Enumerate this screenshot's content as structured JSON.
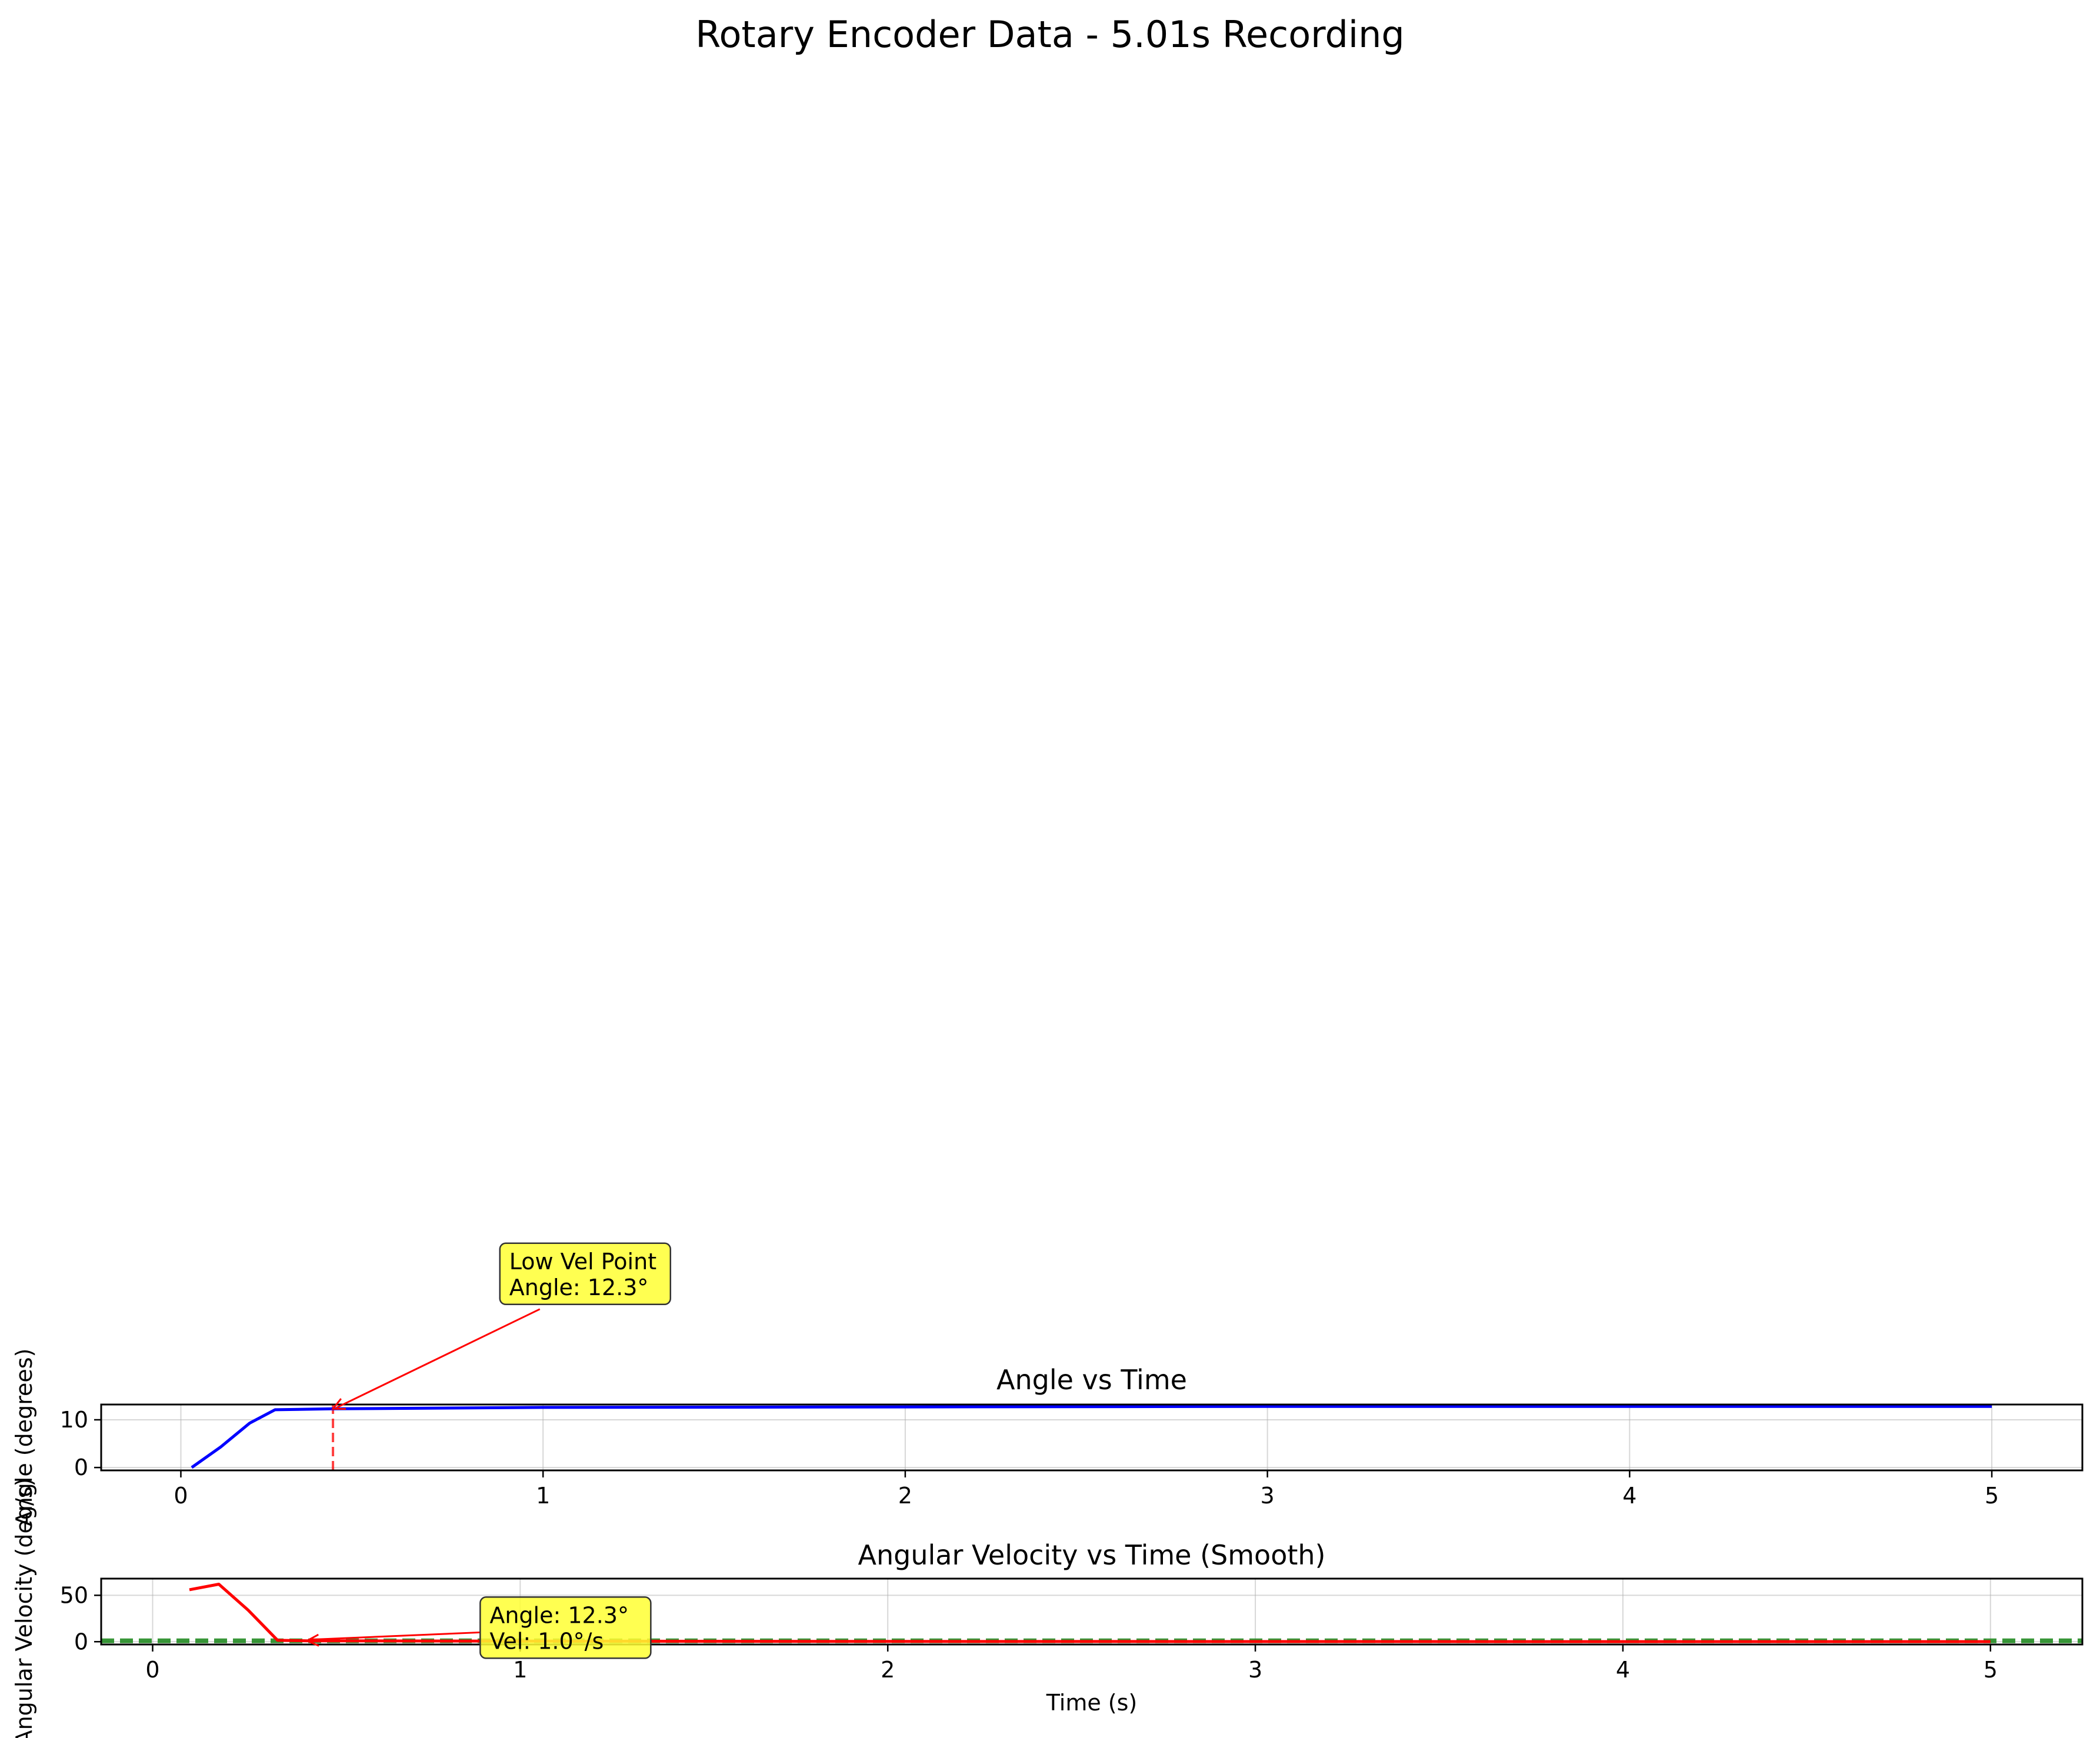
{
  "chart_data": [
    {
      "type": "line",
      "title": "Angle vs Time",
      "xlabel": "",
      "ylabel": "Angle (degrees)",
      "xlim": [
        -0.22,
        5.25
      ],
      "ylim": [
        -0.6,
        13.2
      ],
      "xticks": [
        0,
        1,
        2,
        3,
        4,
        5
      ],
      "yticks": [
        0,
        10
      ],
      "grid": true,
      "series": [
        {
          "name": "Angle",
          "color": "#0000ff",
          "x": [
            0.03,
            0.11,
            0.19,
            0.26,
            0.42,
            1.0,
            2.0,
            3.0,
            4.0,
            5.0
          ],
          "y": [
            0.0,
            4.3,
            9.3,
            12.1,
            12.3,
            12.6,
            12.7,
            12.8,
            12.8,
            12.8
          ]
        }
      ],
      "vline": {
        "x": 0.42,
        "color": "#ff0000",
        "style": "dashed"
      },
      "annotation": {
        "line1": "Low Vel Point",
        "line2": "Angle: 12.3°",
        "point": [
          0.42,
          12.3
        ],
        "text_at": [
          0.91,
          46.0
        ],
        "box_color": "#ffff33",
        "arrow_color": "#ff0000"
      }
    },
    {
      "type": "line",
      "title": "Angular Velocity vs Time (Smooth)",
      "xlabel": "Time (s)",
      "ylabel": "Angular Velocity (deg/s)",
      "xlim": [
        -0.14,
        5.25
      ],
      "ylim": [
        -3.0,
        68.0
      ],
      "xticks": [
        0,
        1,
        2,
        3,
        4,
        5
      ],
      "yticks": [
        0,
        50
      ],
      "grid": true,
      "series": [
        {
          "name": "Angular Velocity",
          "color": "#ff0000",
          "x": [
            0.1,
            0.18,
            0.26,
            0.34,
            0.42,
            1.0,
            2.0,
            3.0,
            4.0,
            5.0
          ],
          "y": [
            56.0,
            62.0,
            34.0,
            1.5,
            1.0,
            0.6,
            0.3,
            0.2,
            0.1,
            0.1
          ]
        }
      ],
      "hline": {
        "y": 1.0,
        "color": "#228b22",
        "style": "dashed"
      },
      "annotation": {
        "line1": "Angle: 12.3°",
        "line2": "Vel: 1.0°/s",
        "point": [
          0.42,
          1.0
        ],
        "text_at": [
          0.92,
          43.0
        ],
        "box_color": "#ffff33",
        "arrow_color": "#ff0000"
      }
    }
  ],
  "suptitle": "Rotary Encoder Data - 5.01s Recording"
}
